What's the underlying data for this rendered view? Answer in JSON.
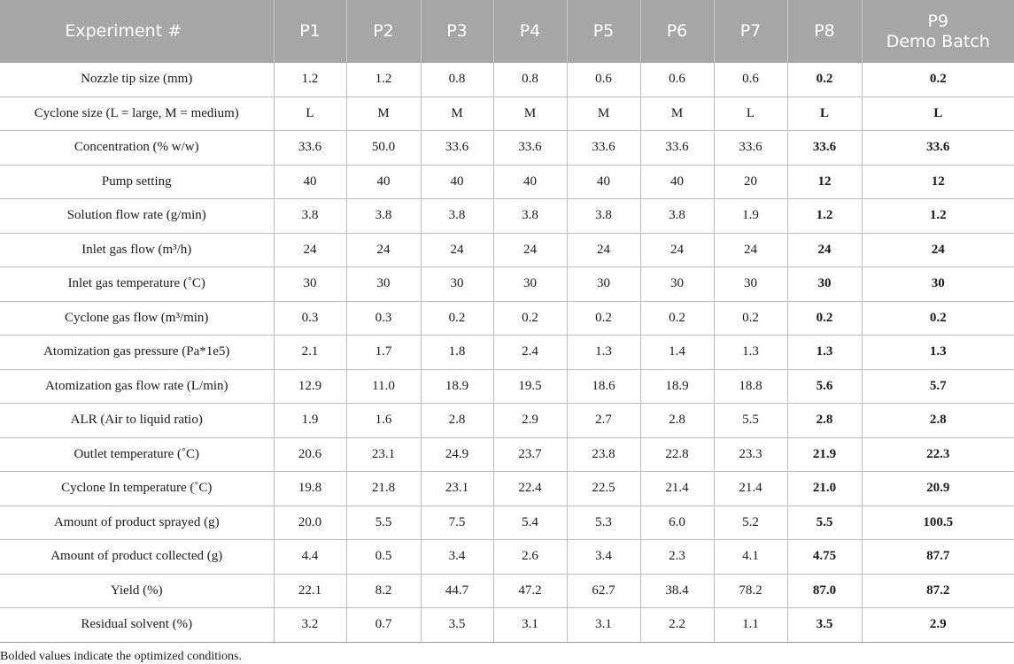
{
  "table": {
    "header": {
      "label": "Experiment #",
      "columns": [
        "P1",
        "P2",
        "P3",
        "P4",
        "P5",
        "P6",
        "P7",
        "P8",
        "P9"
      ],
      "last_column_subtitle": "Demo Batch"
    },
    "bold_columns": [
      7,
      8
    ],
    "rows": [
      {
        "label": "Nozzle tip size (mm)",
        "values": [
          "1.2",
          "1.2",
          "0.8",
          "0.8",
          "0.6",
          "0.6",
          "0.6",
          "0.2",
          "0.2"
        ]
      },
      {
        "label": "Cyclone size (L = large, M = medium)",
        "values": [
          "L",
          "M",
          "M",
          "M",
          "M",
          "M",
          "L",
          "L",
          "L"
        ]
      },
      {
        "label": "Concentration (% w/w)",
        "values": [
          "33.6",
          "50.0",
          "33.6",
          "33.6",
          "33.6",
          "33.6",
          "33.6",
          "33.6",
          "33.6"
        ]
      },
      {
        "label": "Pump setting",
        "values": [
          "40",
          "40",
          "40",
          "40",
          "40",
          "40",
          "20",
          "12",
          "12"
        ]
      },
      {
        "label": "Solution flow rate (g/min)",
        "values": [
          "3.8",
          "3.8",
          "3.8",
          "3.8",
          "3.8",
          "3.8",
          "1.9",
          "1.2",
          "1.2"
        ]
      },
      {
        "label": "Inlet gas flow (m³/h)",
        "values": [
          "24",
          "24",
          "24",
          "24",
          "24",
          "24",
          "24",
          "24",
          "24"
        ]
      },
      {
        "label": "Inlet gas temperature (˚C)",
        "values": [
          "30",
          "30",
          "30",
          "30",
          "30",
          "30",
          "30",
          "30",
          "30"
        ]
      },
      {
        "label": "Cyclone gas flow (m³/min)",
        "values": [
          "0.3",
          "0.3",
          "0.2",
          "0.2",
          "0.2",
          "0.2",
          "0.2",
          "0.2",
          "0.2"
        ]
      },
      {
        "label": "Atomization gas pressure (Pa*1e5)",
        "values": [
          "2.1",
          "1.7",
          "1.8",
          "2.4",
          "1.3",
          "1.4",
          "1.3",
          "1.3",
          "1.3"
        ]
      },
      {
        "label": "Atomization gas flow rate (L/min)",
        "values": [
          "12.9",
          "11.0",
          "18.9",
          "19.5",
          "18.6",
          "18.9",
          "18.8",
          "5.6",
          "5.7"
        ]
      },
      {
        "label": "ALR (Air to liquid ratio)",
        "values": [
          "1.9",
          "1.6",
          "2.8",
          "2.9",
          "2.7",
          "2.8",
          "5.5",
          "2.8",
          "2.8"
        ]
      },
      {
        "label": "Outlet temperature (˚C)",
        "values": [
          "20.6",
          "23.1",
          "24.9",
          "23.7",
          "23.8",
          "22.8",
          "23.3",
          "21.9",
          "22.3"
        ]
      },
      {
        "label": "Cyclone In temperature (˚C)",
        "values": [
          "19.8",
          "21.8",
          "23.1",
          "22.4",
          "22.5",
          "21.4",
          "21.4",
          "21.0",
          "20.9"
        ]
      },
      {
        "label": "Amount of product sprayed (g)",
        "values": [
          "20.0",
          "5.5",
          "7.5",
          "5.4",
          "5.3",
          "6.0",
          "5.2",
          "5.5",
          "100.5"
        ]
      },
      {
        "label": "Amount of product collected (g)",
        "values": [
          "4.4",
          "0.5",
          "3.4",
          "2.6",
          "3.4",
          "2.3",
          "4.1",
          "4.75",
          "87.7"
        ]
      },
      {
        "label": "Yield (%)",
        "values": [
          "22.1",
          "8.2",
          "44.7",
          "47.2",
          "62.7",
          "38.4",
          "78.2",
          "87.0",
          "87.2"
        ]
      },
      {
        "label": "Residual solvent (%)",
        "values": [
          "3.2",
          "0.7",
          "3.5",
          "3.1",
          "3.1",
          "2.2",
          "1.1",
          "3.5",
          "2.9"
        ]
      }
    ]
  },
  "footnote": "Bolded values indicate the optimized conditions."
}
